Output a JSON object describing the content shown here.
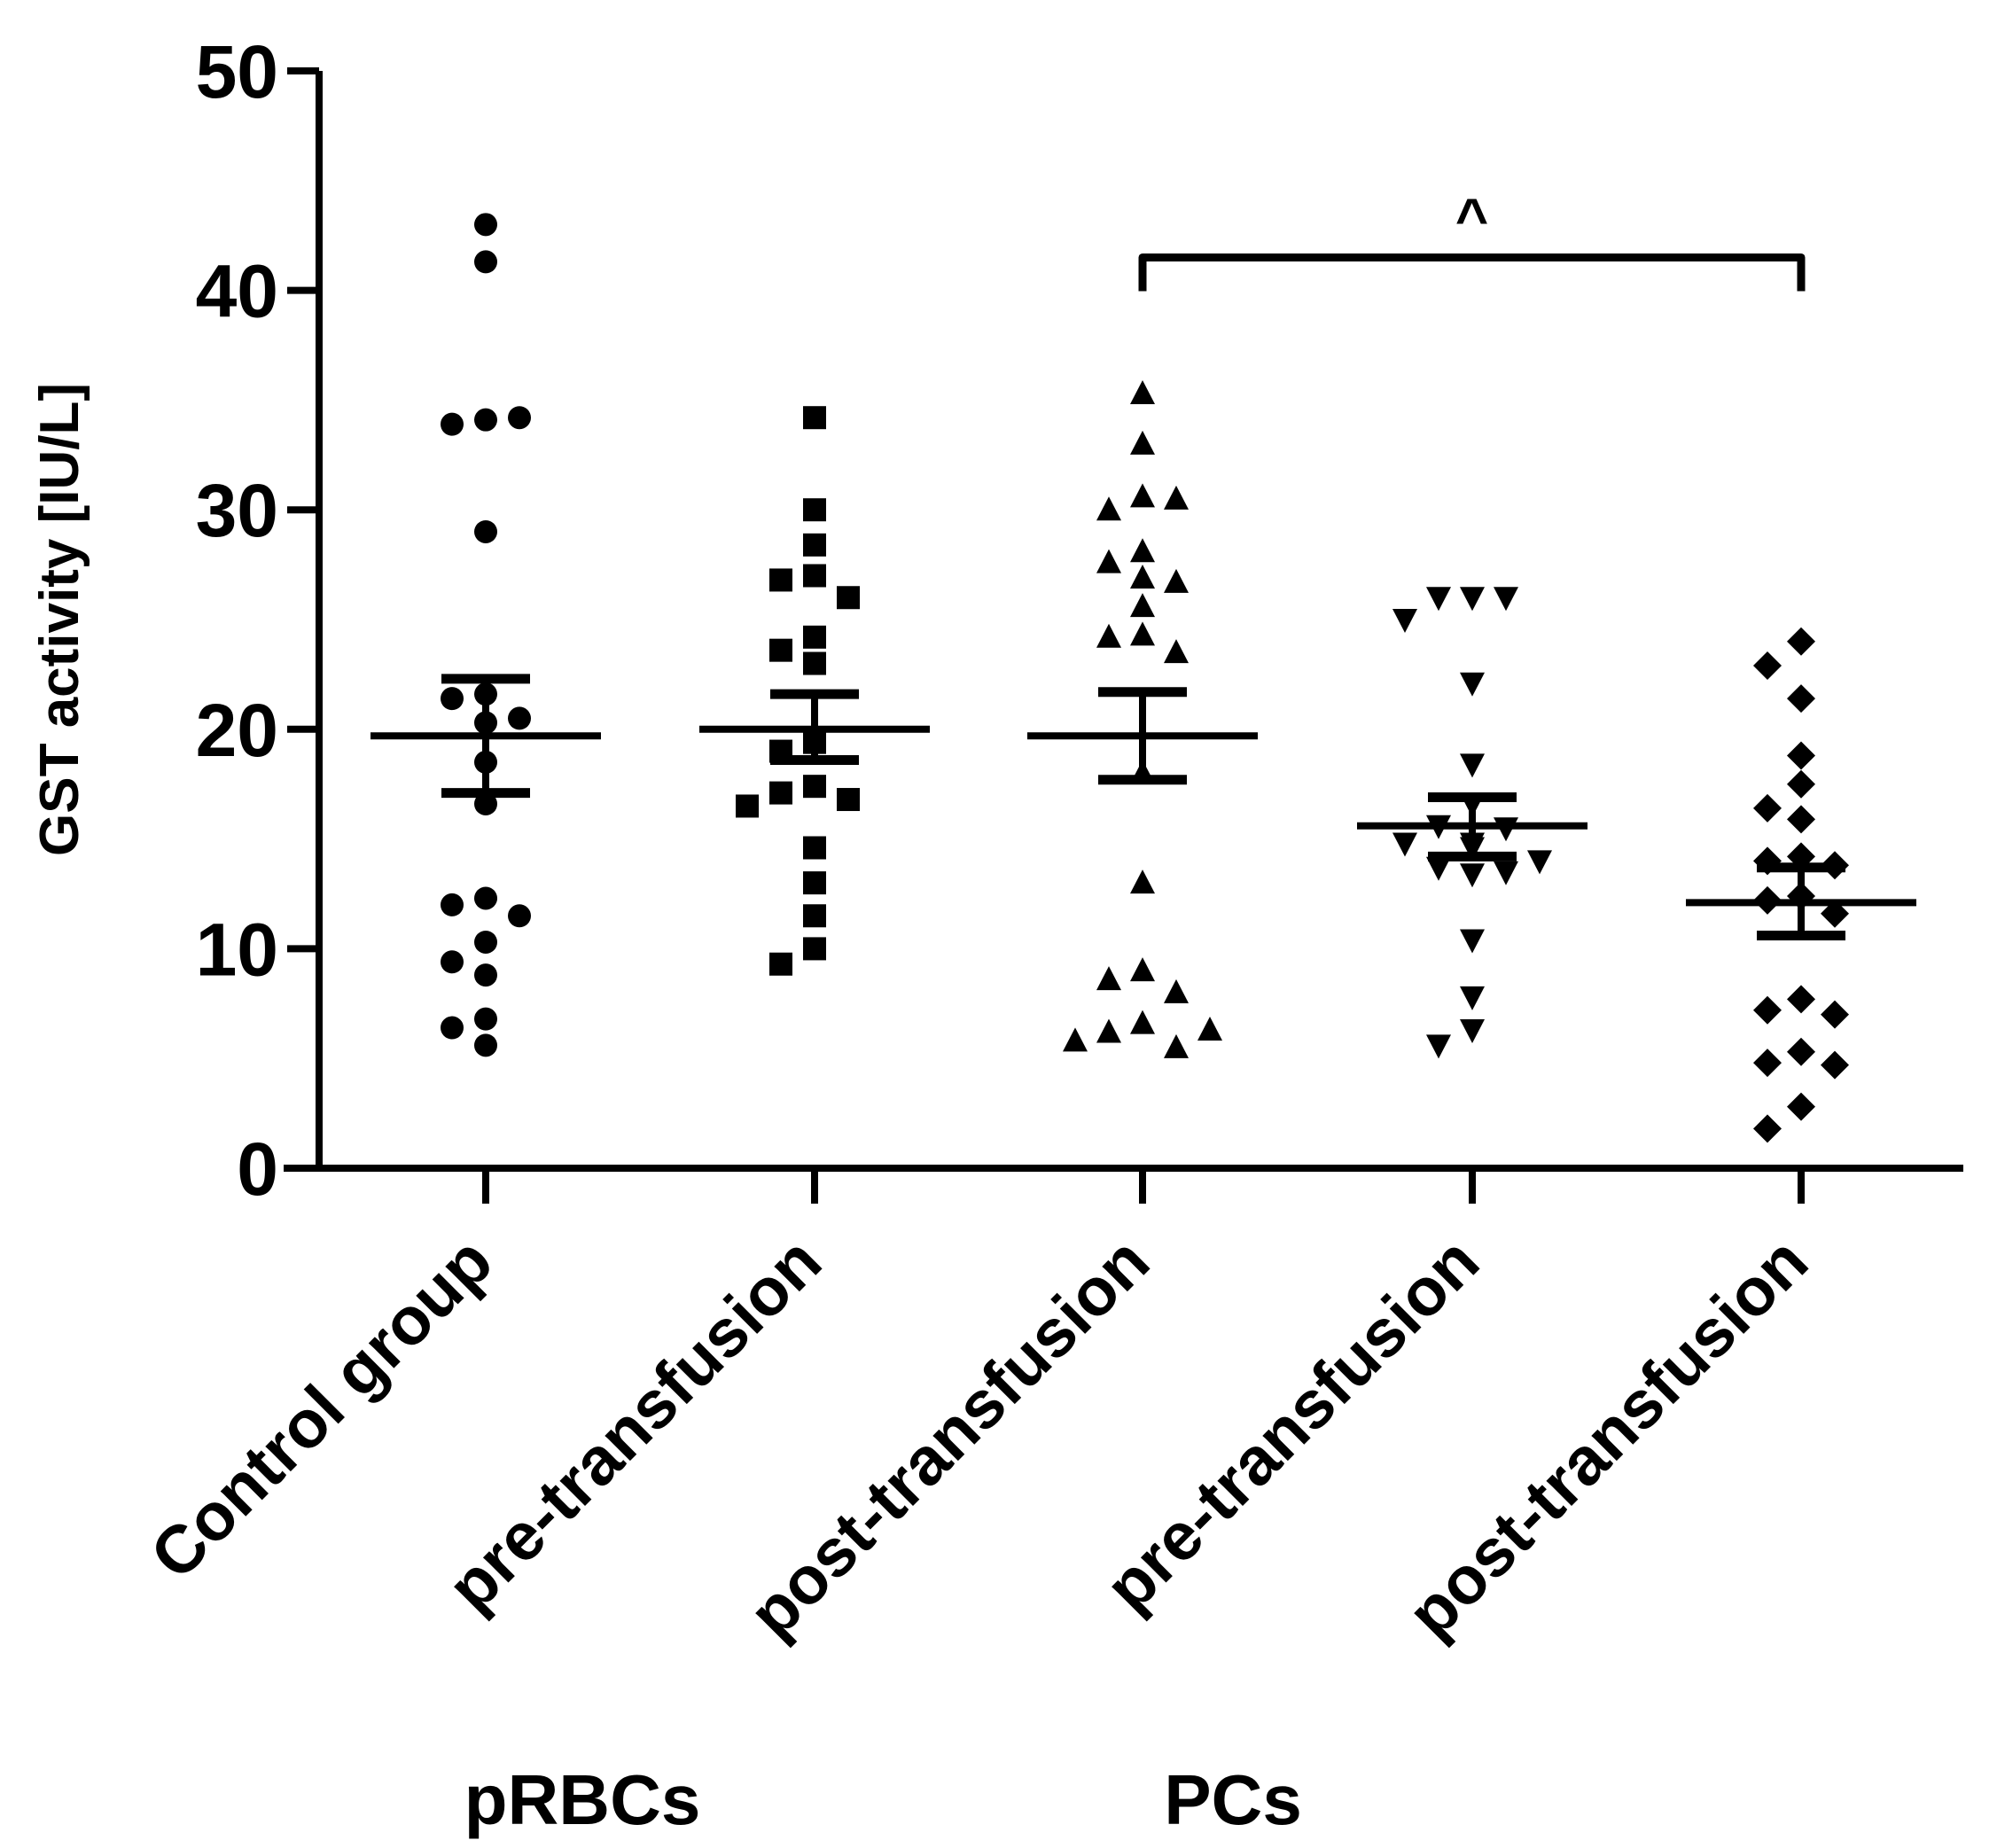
{
  "chart_data": {
    "type": "scatter",
    "subtype": "dot-plot with mean ± SEM",
    "ylabel": "GST activity [IU/L]",
    "ylim": [
      0,
      50
    ],
    "yticks": [
      0,
      10,
      20,
      30,
      40,
      50
    ],
    "categories": [
      "Control group",
      "pre-transfusion",
      "post-transfusion",
      "pre-transfusion",
      "post-transfusion"
    ],
    "groups": [
      {
        "label": "pRBCs"
      },
      {
        "label": "PCs"
      }
    ],
    "series": [
      {
        "name": "Control group",
        "marker": "circle",
        "mean": 19.7,
        "sem_low": 17.1,
        "sem_high": 22.3,
        "values": [
          43.0,
          41.3,
          34.1,
          33.9,
          34.2,
          29.0,
          21.6,
          21.4,
          20.5,
          20.3,
          18.5,
          16.6,
          12.3,
          12.0,
          11.5,
          10.3,
          9.4,
          8.8,
          6.8,
          6.4,
          5.6
        ]
      },
      {
        "name": "pRBCs pre-transfusion",
        "marker": "square",
        "mean": 20.0,
        "sem_low": 18.6,
        "sem_high": 21.6,
        "values": [
          34.2,
          30.0,
          28.4,
          27.0,
          26.8,
          26.0,
          24.2,
          23.6,
          23.0,
          19.4,
          19.0,
          17.4,
          17.1,
          16.8,
          16.5,
          14.6,
          13.0,
          11.5,
          10.0,
          9.3
        ]
      },
      {
        "name": "pRBCs post-transfusion",
        "marker": "triangle-up",
        "mean": 19.7,
        "sem_low": 17.7,
        "sem_high": 21.7,
        "values": [
          35.3,
          33.0,
          30.6,
          30.0,
          30.5,
          28.1,
          27.6,
          26.9,
          26.7,
          25.6,
          24.3,
          24.2,
          23.5,
          18.0,
          13.0,
          9.0,
          8.6,
          8.0,
          6.6,
          6.2,
          5.5,
          5.8,
          6.3
        ]
      },
      {
        "name": "PCs pre-transfusion",
        "marker": "triangle-down",
        "mean": 15.6,
        "sem_low": 14.2,
        "sem_high": 16.9,
        "values": [
          26.0,
          26.0,
          26.0,
          25.0,
          22.1,
          18.4,
          16.6,
          15.6,
          15.5,
          14.6,
          14.8,
          13.7,
          13.5,
          13.4,
          14.0,
          14.8,
          10.4,
          7.8,
          6.3,
          5.6
        ]
      },
      {
        "name": "PCs post-transfusion",
        "marker": "diamond",
        "mean": 12.1,
        "sem_low": 10.6,
        "sem_high": 13.7,
        "values": [
          24.0,
          22.9,
          21.4,
          18.8,
          17.5,
          16.4,
          15.9,
          14.2,
          14.0,
          13.8,
          12.4,
          12.2,
          11.6,
          7.7,
          7.2,
          7.0,
          5.3,
          4.8,
          4.7,
          2.8,
          1.8
        ]
      }
    ],
    "annotations": [
      {
        "text": "^",
        "between": [
          "pRBCs post-transfusion",
          "PCs post-transfusion"
        ],
        "y": 41.5
      }
    ]
  }
}
